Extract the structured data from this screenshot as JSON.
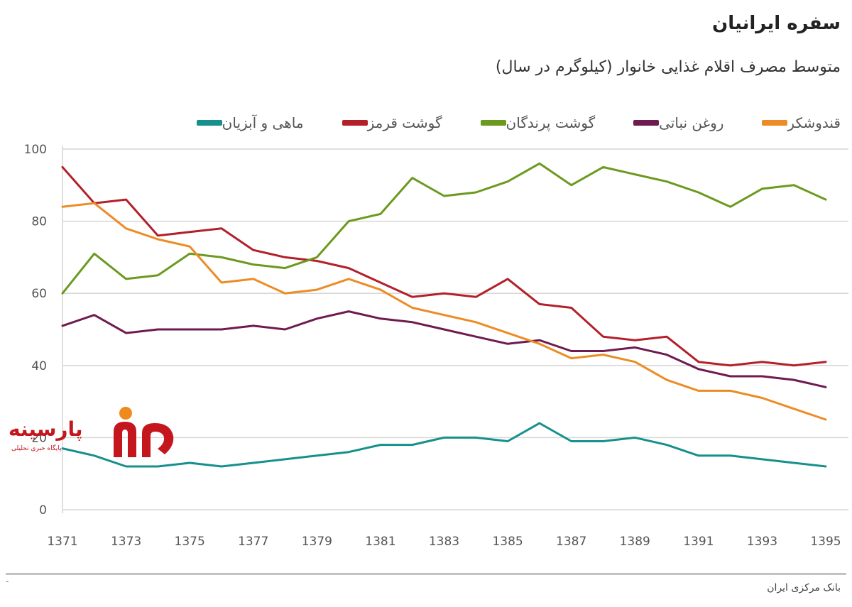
{
  "header": {
    "title": "سفره ایرانیان",
    "subtitle": "متوسط مصرف اقلام غذایی خانوار (کیلوگرم در سال)"
  },
  "watermark": {
    "brand": "پارسینه",
    "tagline": "پایگاه خبری تحلیلی"
  },
  "footer": {
    "source": "بانک مرکزی ایران",
    "dash": "-"
  },
  "chart_data": {
    "type": "line",
    "title": "",
    "xlabel": "",
    "ylabel": "",
    "x": [
      1371,
      1372,
      1373,
      1374,
      1375,
      1376,
      1377,
      1378,
      1379,
      1380,
      1381,
      1382,
      1383,
      1384,
      1385,
      1386,
      1387,
      1388,
      1389,
      1390,
      1391,
      1392,
      1393,
      1394,
      1395
    ],
    "x_ticks": [
      "1371",
      "1373",
      "1375",
      "1377",
      "1379",
      "1381",
      "1383",
      "1385",
      "1387",
      "1389",
      "1391",
      "1393",
      "1395"
    ],
    "y_ticks": [
      "0",
      "20",
      "40",
      "60",
      "80",
      "100"
    ],
    "ylim": [
      0,
      100
    ],
    "grid": true,
    "legend_position": "top-right",
    "series": [
      {
        "name": "ماهی و آبزیان",
        "color": "#16908c",
        "values": [
          17,
          15,
          12,
          12,
          13,
          12,
          13,
          14,
          15,
          16,
          18,
          18,
          20,
          20,
          19,
          24,
          19,
          19,
          20,
          18,
          15,
          15,
          14,
          13,
          12
        ]
      },
      {
        "name": "گوشت قرمز",
        "color": "#b3202a",
        "values": [
          95,
          85,
          86,
          76,
          77,
          78,
          72,
          70,
          69,
          67,
          63,
          59,
          60,
          59,
          64,
          57,
          56,
          48,
          47,
          48,
          41,
          40,
          41,
          40,
          41
        ]
      },
      {
        "name": "گوشت پرندگان",
        "color": "#6c9a1f",
        "values": [
          60,
          71,
          64,
          65,
          71,
          70,
          68,
          67,
          70,
          80,
          82,
          92,
          87,
          88,
          91,
          96,
          90,
          95,
          93,
          91,
          88,
          84,
          89,
          90,
          86
        ]
      },
      {
        "name": "روغن نباتی",
        "color": "#6e1b4f",
        "values": [
          51,
          54,
          49,
          50,
          50,
          50,
          51,
          50,
          53,
          55,
          53,
          52,
          50,
          48,
          46,
          47,
          44,
          44,
          45,
          43,
          39,
          37,
          37,
          36,
          34
        ]
      },
      {
        "name": "قندوشکر",
        "color": "#ec8c25",
        "values": [
          84,
          85,
          78,
          75,
          73,
          63,
          64,
          60,
          61,
          64,
          61,
          56,
          54,
          52,
          49,
          46,
          42,
          43,
          41,
          36,
          33,
          33,
          31,
          28,
          25
        ]
      }
    ]
  }
}
